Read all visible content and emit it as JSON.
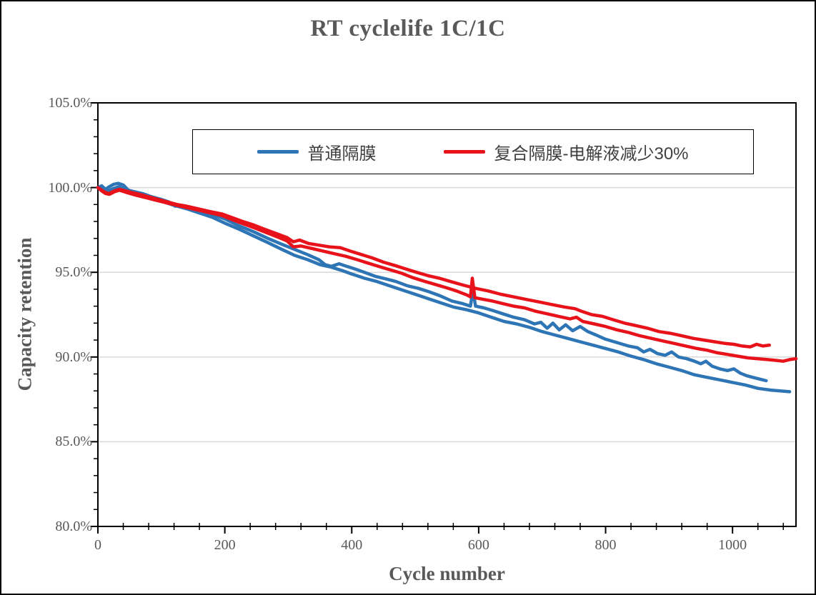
{
  "chart_data": {
    "type": "line",
    "title": "RT cyclelife 1C/1C",
    "xlabel": "Cycle number",
    "ylabel": "Capacity retention",
    "xlim": [
      0,
      1100
    ],
    "ylim": [
      80,
      105
    ],
    "x_major_ticks": [
      0,
      200,
      400,
      600,
      800,
      1000
    ],
    "x_tick_labels": [
      "0",
      "200",
      "400",
      "600",
      "800",
      "1000"
    ],
    "x_minor_step": 40,
    "y_major_ticks": [
      80,
      85,
      90,
      95,
      100,
      105
    ],
    "y_tick_labels": [
      "80.0%",
      "85.0%",
      "90.0%",
      "95.0%",
      "100.0%",
      "105.0%"
    ],
    "y_minor_step": 1,
    "grid": "horizontal-major-only",
    "legend_position": "top-inside-bordered",
    "colors": {
      "axis": "#000000",
      "grid": "#d9d9d9",
      "labels": "#595959",
      "series_blue": "#2e75b6",
      "series_red": "#e8121a"
    },
    "series": [
      {
        "name": "普通隔膜 (cell 1)",
        "legend_group": "普通隔膜",
        "color": "#2e75b6",
        "points": [
          [
            0,
            100.0
          ],
          [
            6,
            100.1
          ],
          [
            12,
            99.9
          ],
          [
            18,
            100.05
          ],
          [
            25,
            100.2
          ],
          [
            32,
            100.25
          ],
          [
            40,
            100.15
          ],
          [
            48,
            99.85
          ],
          [
            58,
            99.75
          ],
          [
            70,
            99.65
          ],
          [
            85,
            99.45
          ],
          [
            100,
            99.3
          ],
          [
            112,
            99.15
          ],
          [
            122,
            98.9
          ],
          [
            132,
            98.95
          ],
          [
            145,
            98.85
          ],
          [
            160,
            98.6
          ],
          [
            178,
            98.45
          ],
          [
            200,
            98.15
          ],
          [
            222,
            97.75
          ],
          [
            245,
            97.4
          ],
          [
            268,
            97.0
          ],
          [
            290,
            96.65
          ],
          [
            310,
            96.35
          ],
          [
            330,
            96.05
          ],
          [
            348,
            95.75
          ],
          [
            358,
            95.45
          ],
          [
            368,
            95.35
          ],
          [
            380,
            95.5
          ],
          [
            392,
            95.35
          ],
          [
            405,
            95.2
          ],
          [
            420,
            95.0
          ],
          [
            438,
            94.75
          ],
          [
            455,
            94.6
          ],
          [
            470,
            94.45
          ],
          [
            488,
            94.2
          ],
          [
            505,
            94.05
          ],
          [
            522,
            93.85
          ],
          [
            540,
            93.6
          ],
          [
            558,
            93.3
          ],
          [
            575,
            93.15
          ],
          [
            587,
            93.0
          ],
          [
            591,
            93.95
          ],
          [
            595,
            93.0
          ],
          [
            608,
            92.9
          ],
          [
            622,
            92.75
          ],
          [
            638,
            92.55
          ],
          [
            655,
            92.35
          ],
          [
            672,
            92.2
          ],
          [
            688,
            91.95
          ],
          [
            698,
            92.05
          ],
          [
            708,
            91.7
          ],
          [
            717,
            92.0
          ],
          [
            727,
            91.6
          ],
          [
            737,
            91.9
          ],
          [
            748,
            91.55
          ],
          [
            760,
            91.8
          ],
          [
            772,
            91.5
          ],
          [
            785,
            91.3
          ],
          [
            800,
            91.05
          ],
          [
            818,
            90.85
          ],
          [
            836,
            90.65
          ],
          [
            850,
            90.55
          ],
          [
            860,
            90.3
          ],
          [
            870,
            90.45
          ],
          [
            882,
            90.2
          ],
          [
            894,
            90.1
          ],
          [
            904,
            90.3
          ],
          [
            915,
            90.0
          ],
          [
            928,
            89.9
          ],
          [
            940,
            89.75
          ],
          [
            950,
            89.6
          ],
          [
            958,
            89.75
          ],
          [
            968,
            89.45
          ],
          [
            980,
            89.3
          ],
          [
            992,
            89.2
          ],
          [
            1002,
            89.3
          ],
          [
            1012,
            89.05
          ],
          [
            1022,
            88.9
          ],
          [
            1032,
            88.8
          ],
          [
            1042,
            88.7
          ],
          [
            1053,
            88.6
          ]
        ]
      },
      {
        "name": "普通隔膜 (cell 2)",
        "legend_group": "普通隔膜",
        "color": "#2e75b6",
        "points": [
          [
            0,
            100.0
          ],
          [
            8,
            99.95
          ],
          [
            16,
            99.8
          ],
          [
            25,
            99.95
          ],
          [
            33,
            100.05
          ],
          [
            42,
            99.9
          ],
          [
            52,
            99.75
          ],
          [
            65,
            99.6
          ],
          [
            80,
            99.45
          ],
          [
            100,
            99.2
          ],
          [
            120,
            98.95
          ],
          [
            140,
            98.75
          ],
          [
            160,
            98.5
          ],
          [
            180,
            98.25
          ],
          [
            200,
            97.9
          ],
          [
            222,
            97.55
          ],
          [
            245,
            97.15
          ],
          [
            268,
            96.75
          ],
          [
            290,
            96.35
          ],
          [
            310,
            96.0
          ],
          [
            330,
            95.75
          ],
          [
            350,
            95.45
          ],
          [
            368,
            95.3
          ],
          [
            385,
            95.1
          ],
          [
            400,
            94.9
          ],
          [
            420,
            94.65
          ],
          [
            440,
            94.45
          ],
          [
            460,
            94.2
          ],
          [
            480,
            93.95
          ],
          [
            500,
            93.7
          ],
          [
            520,
            93.45
          ],
          [
            540,
            93.2
          ],
          [
            560,
            92.95
          ],
          [
            580,
            92.8
          ],
          [
            600,
            92.6
          ],
          [
            620,
            92.35
          ],
          [
            640,
            92.1
          ],
          [
            660,
            91.95
          ],
          [
            680,
            91.75
          ],
          [
            700,
            91.5
          ],
          [
            720,
            91.3
          ],
          [
            740,
            91.1
          ],
          [
            760,
            90.9
          ],
          [
            780,
            90.7
          ],
          [
            800,
            90.5
          ],
          [
            820,
            90.3
          ],
          [
            840,
            90.05
          ],
          [
            860,
            89.85
          ],
          [
            880,
            89.6
          ],
          [
            900,
            89.4
          ],
          [
            920,
            89.2
          ],
          [
            940,
            88.95
          ],
          [
            960,
            88.8
          ],
          [
            980,
            88.65
          ],
          [
            1000,
            88.5
          ],
          [
            1020,
            88.35
          ],
          [
            1040,
            88.15
          ],
          [
            1060,
            88.05
          ],
          [
            1075,
            88.0
          ],
          [
            1090,
            87.95
          ]
        ]
      },
      {
        "name": "复合隔膜-电解液减少30% (cell 1)",
        "legend_group": "复合隔膜-电解液减少30%",
        "color": "#e8121a",
        "points": [
          [
            0,
            100.0
          ],
          [
            6,
            99.85
          ],
          [
            12,
            99.7
          ],
          [
            18,
            99.65
          ],
          [
            26,
            99.8
          ],
          [
            34,
            99.9
          ],
          [
            44,
            99.8
          ],
          [
            54,
            99.7
          ],
          [
            66,
            99.6
          ],
          [
            80,
            99.45
          ],
          [
            95,
            99.3
          ],
          [
            110,
            99.15
          ],
          [
            125,
            99.0
          ],
          [
            140,
            98.9
          ],
          [
            158,
            98.75
          ],
          [
            175,
            98.6
          ],
          [
            195,
            98.45
          ],
          [
            210,
            98.25
          ],
          [
            228,
            98.0
          ],
          [
            245,
            97.8
          ],
          [
            262,
            97.55
          ],
          [
            280,
            97.3
          ],
          [
            298,
            97.05
          ],
          [
            308,
            96.8
          ],
          [
            318,
            96.9
          ],
          [
            332,
            96.7
          ],
          [
            348,
            96.6
          ],
          [
            365,
            96.5
          ],
          [
            382,
            96.45
          ],
          [
            398,
            96.25
          ],
          [
            415,
            96.05
          ],
          [
            432,
            95.85
          ],
          [
            450,
            95.6
          ],
          [
            468,
            95.4
          ],
          [
            485,
            95.2
          ],
          [
            502,
            95.0
          ],
          [
            520,
            94.8
          ],
          [
            538,
            94.65
          ],
          [
            556,
            94.45
          ],
          [
            575,
            94.25
          ],
          [
            595,
            94.05
          ],
          [
            615,
            93.9
          ],
          [
            635,
            93.7
          ],
          [
            655,
            93.55
          ],
          [
            675,
            93.4
          ],
          [
            695,
            93.25
          ],
          [
            715,
            93.1
          ],
          [
            735,
            92.95
          ],
          [
            752,
            92.85
          ],
          [
            762,
            92.7
          ],
          [
            778,
            92.5
          ],
          [
            795,
            92.4
          ],
          [
            812,
            92.2
          ],
          [
            830,
            92.0
          ],
          [
            848,
            91.85
          ],
          [
            866,
            91.7
          ],
          [
            884,
            91.5
          ],
          [
            902,
            91.4
          ],
          [
            920,
            91.25
          ],
          [
            938,
            91.1
          ],
          [
            955,
            91.0
          ],
          [
            972,
            90.9
          ],
          [
            988,
            90.8
          ],
          [
            1002,
            90.75
          ],
          [
            1015,
            90.65
          ],
          [
            1028,
            90.6
          ],
          [
            1038,
            90.75
          ],
          [
            1048,
            90.65
          ],
          [
            1058,
            90.7
          ]
        ]
      },
      {
        "name": "复合隔膜-电解液减少30% (cell 2)",
        "legend_group": "复合隔膜-电解液减少30%",
        "color": "#e8121a",
        "points": [
          [
            0,
            100.0
          ],
          [
            6,
            99.8
          ],
          [
            12,
            99.65
          ],
          [
            18,
            99.6
          ],
          [
            26,
            99.75
          ],
          [
            34,
            99.85
          ],
          [
            46,
            99.7
          ],
          [
            60,
            99.55
          ],
          [
            76,
            99.4
          ],
          [
            92,
            99.25
          ],
          [
            108,
            99.1
          ],
          [
            125,
            98.95
          ],
          [
            142,
            98.8
          ],
          [
            160,
            98.65
          ],
          [
            178,
            98.5
          ],
          [
            195,
            98.35
          ],
          [
            212,
            98.1
          ],
          [
            230,
            97.85
          ],
          [
            248,
            97.6
          ],
          [
            265,
            97.35
          ],
          [
            282,
            97.1
          ],
          [
            298,
            96.85
          ],
          [
            308,
            96.5
          ],
          [
            320,
            96.55
          ],
          [
            338,
            96.4
          ],
          [
            355,
            96.25
          ],
          [
            372,
            96.1
          ],
          [
            390,
            95.95
          ],
          [
            408,
            95.75
          ],
          [
            425,
            95.55
          ],
          [
            442,
            95.35
          ],
          [
            460,
            95.15
          ],
          [
            478,
            94.95
          ],
          [
            495,
            94.7
          ],
          [
            512,
            94.5
          ],
          [
            530,
            94.3
          ],
          [
            548,
            94.1
          ],
          [
            565,
            93.9
          ],
          [
            582,
            93.65
          ],
          [
            587,
            93.55
          ],
          [
            590,
            94.65
          ],
          [
            594,
            93.5
          ],
          [
            608,
            93.4
          ],
          [
            622,
            93.3
          ],
          [
            638,
            93.15
          ],
          [
            655,
            93.0
          ],
          [
            672,
            92.9
          ],
          [
            690,
            92.7
          ],
          [
            708,
            92.55
          ],
          [
            726,
            92.4
          ],
          [
            744,
            92.25
          ],
          [
            754,
            92.35
          ],
          [
            764,
            92.1
          ],
          [
            782,
            91.95
          ],
          [
            800,
            91.8
          ],
          [
            818,
            91.6
          ],
          [
            836,
            91.45
          ],
          [
            854,
            91.25
          ],
          [
            872,
            91.1
          ],
          [
            890,
            90.95
          ],
          [
            908,
            90.8
          ],
          [
            926,
            90.65
          ],
          [
            944,
            90.5
          ],
          [
            960,
            90.4
          ],
          [
            976,
            90.25
          ],
          [
            992,
            90.15
          ],
          [
            1008,
            90.05
          ],
          [
            1024,
            89.95
          ],
          [
            1040,
            89.9
          ],
          [
            1055,
            89.85
          ],
          [
            1068,
            89.8
          ],
          [
            1080,
            89.75
          ],
          [
            1090,
            89.85
          ],
          [
            1100,
            89.9
          ]
        ]
      }
    ]
  },
  "legend": {
    "items": [
      {
        "label": "普通隔膜",
        "color": "#2e75b6"
      },
      {
        "label": "复合隔膜-电解液减少30%",
        "color": "#e8121a"
      }
    ]
  }
}
